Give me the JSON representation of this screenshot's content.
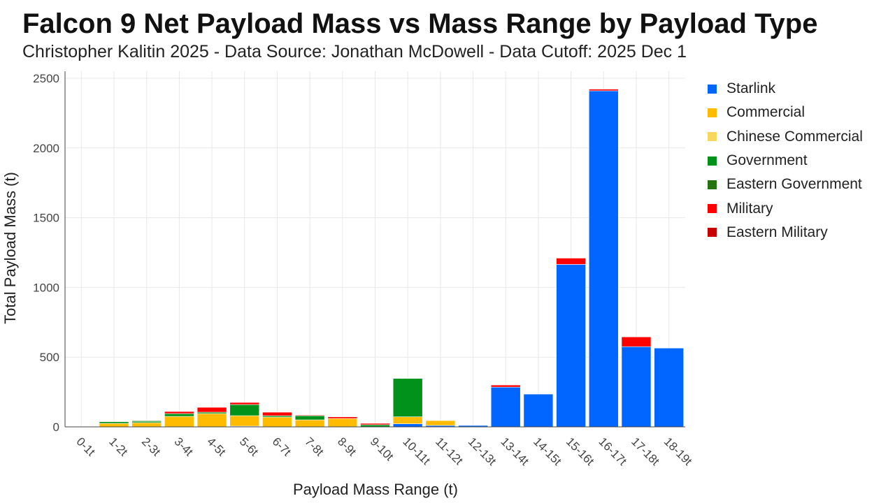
{
  "chart_data": {
    "type": "bar",
    "stacked": true,
    "title": "Falcon 9 Net Payload Mass vs Mass Range by Payload Type",
    "subtitle": "Christopher Kalitin 2025 - Data Source: Jonathan McDowell - Data Cutoff: 2025 Dec 1",
    "xlabel": "Payload Mass Range (t)",
    "ylabel": "Total Payload Mass (t)",
    "ylim": [
      0,
      2550
    ],
    "yticks": [
      0,
      500,
      1000,
      1500,
      2000,
      2500
    ],
    "grid": true,
    "legend_position": "right",
    "categories": [
      "0-1t",
      "1-2t",
      "2-3t",
      "3-4t",
      "4-5t",
      "5-6t",
      "6-7t",
      "7-8t",
      "8-9t",
      "9-10t",
      "10-11t",
      "11-12t",
      "12-13t",
      "13-14t",
      "14-15t",
      "15-16t",
      "16-17t",
      "17-18t",
      "18-19t"
    ],
    "series": [
      {
        "name": "Starlink",
        "color": "#0066ff",
        "values": [
          0,
          0,
          0,
          0,
          0,
          5,
          0,
          0,
          0,
          0,
          22,
          10,
          10,
          285,
          235,
          1165,
          2410,
          575,
          565
        ]
      },
      {
        "name": "Commercial",
        "color": "#ffbb00",
        "values": [
          2,
          25,
          30,
          75,
          95,
          75,
          70,
          50,
          60,
          0,
          50,
          35,
          0,
          0,
          0,
          0,
          0,
          0,
          0
        ]
      },
      {
        "name": "Chinese Commercial",
        "color": "#f7d85c",
        "values": [
          0,
          0,
          0,
          0,
          0,
          0,
          0,
          0,
          0,
          0,
          0,
          0,
          0,
          0,
          0,
          0,
          0,
          0,
          0
        ]
      },
      {
        "name": "Government",
        "color": "#00921a",
        "values": [
          3,
          12,
          10,
          20,
          10,
          80,
          10,
          30,
          0,
          15,
          275,
          0,
          0,
          0,
          0,
          0,
          0,
          0,
          0
        ]
      },
      {
        "name": "Eastern Government",
        "color": "#267312",
        "values": [
          0,
          0,
          5,
          0,
          0,
          0,
          0,
          0,
          0,
          0,
          0,
          0,
          0,
          0,
          0,
          0,
          0,
          0,
          0
        ]
      },
      {
        "name": "Military",
        "color": "#ff0000",
        "values": [
          0,
          0,
          0,
          15,
          35,
          15,
          25,
          5,
          12,
          10,
          0,
          0,
          0,
          15,
          0,
          45,
          12,
          70,
          0
        ]
      },
      {
        "name": "Eastern Military",
        "color": "#c80000",
        "values": [
          0,
          0,
          0,
          0,
          0,
          0,
          0,
          0,
          0,
          0,
          0,
          0,
          0,
          0,
          0,
          0,
          0,
          0,
          0
        ]
      }
    ]
  }
}
